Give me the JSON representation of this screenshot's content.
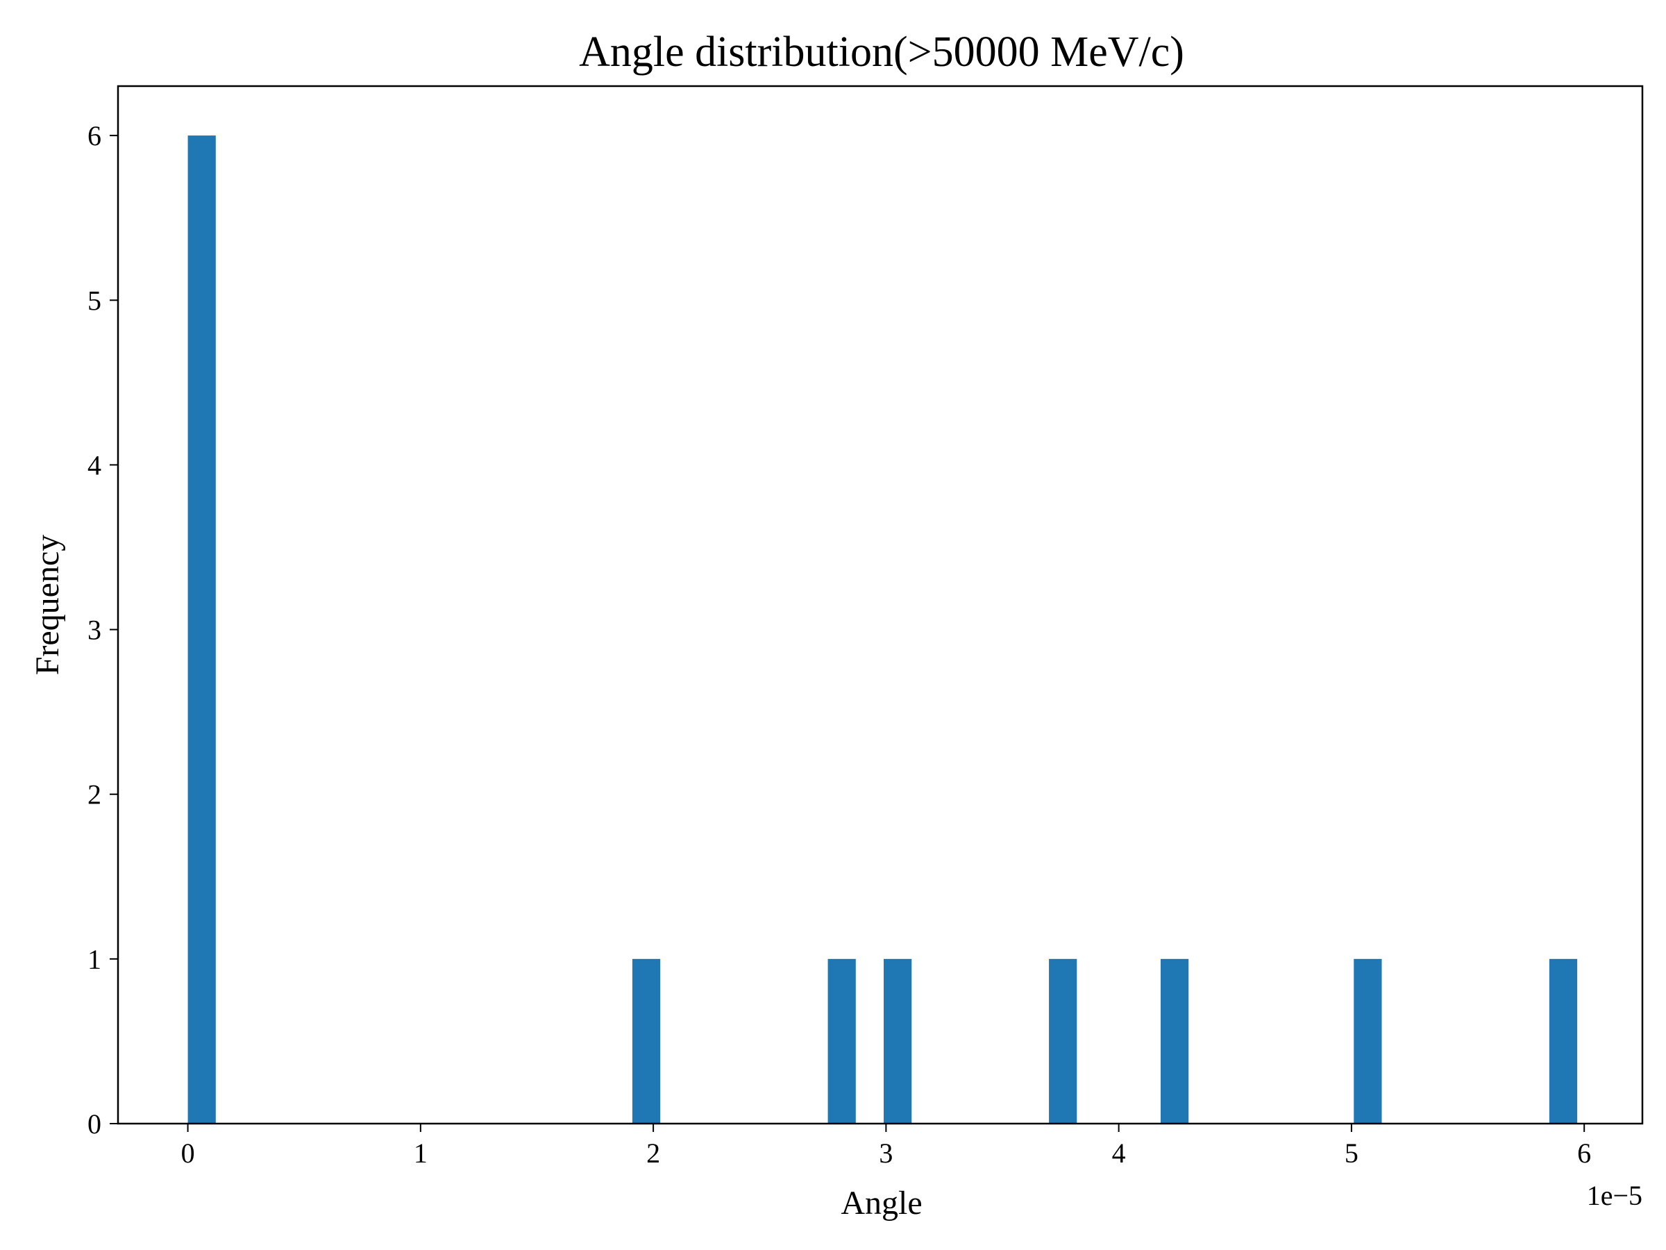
{
  "chart_data": {
    "type": "bar",
    "title": "Angle distribution(>50000 MeV/c)",
    "xlabel": "Angle",
    "ylabel": "Frequency",
    "x_offset_label": "1e−5",
    "x_scale": 1e-05,
    "xlim": [
      -0.3,
      6.25
    ],
    "ylim": [
      0,
      6.3
    ],
    "bin_width": 0.12,
    "x_ticks": [
      {
        "value": 0,
        "label": "0"
      },
      {
        "value": 1,
        "label": "1"
      },
      {
        "value": 2,
        "label": "2"
      },
      {
        "value": 3,
        "label": "3"
      },
      {
        "value": 4,
        "label": "4"
      },
      {
        "value": 5,
        "label": "5"
      },
      {
        "value": 6,
        "label": "6"
      }
    ],
    "y_ticks": [
      {
        "value": 0,
        "label": "0"
      },
      {
        "value": 1,
        "label": "1"
      },
      {
        "value": 2,
        "label": "2"
      },
      {
        "value": 3,
        "label": "3"
      },
      {
        "value": 4,
        "label": "4"
      },
      {
        "value": 5,
        "label": "5"
      },
      {
        "value": 6,
        "label": "6"
      }
    ],
    "bars": [
      {
        "x": 0.06,
        "value": 6
      },
      {
        "x": 1.97,
        "value": 1
      },
      {
        "x": 2.81,
        "value": 1
      },
      {
        "x": 3.05,
        "value": 1
      },
      {
        "x": 3.76,
        "value": 1
      },
      {
        "x": 4.24,
        "value": 1
      },
      {
        "x": 5.07,
        "value": 1
      },
      {
        "x": 5.91,
        "value": 1
      }
    ],
    "bar_color": "#1f77b4",
    "grid": false,
    "legend": "none"
  }
}
